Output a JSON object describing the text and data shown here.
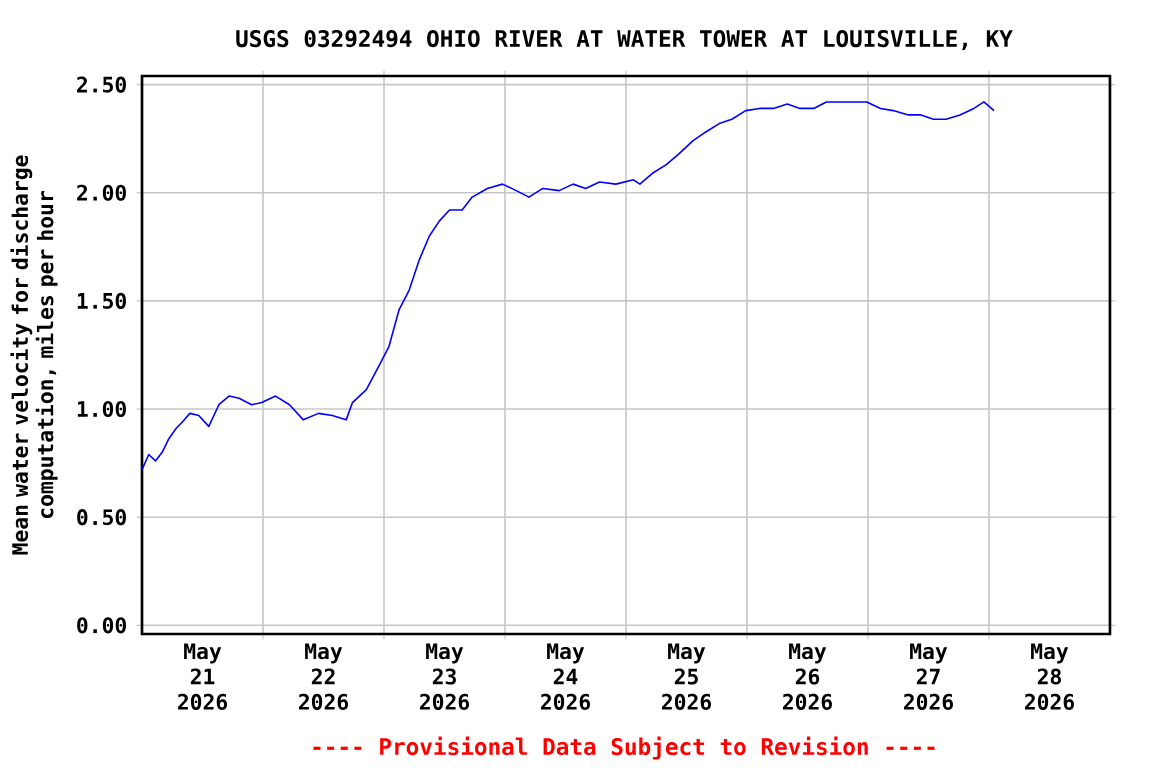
{
  "chart_data": {
    "type": "line",
    "title": "USGS 03292494 OHIO RIVER AT WATER TOWER AT LOUISVILLE, KY",
    "ylabel": "Mean water velocity for discharge computation, miles per hour",
    "annotations": [
      "---- Provisional Data Subject to Revision ----"
    ],
    "color": "#0000ff",
    "x": [
      "2026-05-21T00:00",
      "2026-05-21T01:20",
      "2026-05-21T02:40",
      "2026-05-21T04:00",
      "2026-05-21T05:15",
      "2026-05-21T06:45",
      "2026-05-21T08:00",
      "2026-05-21T09:30",
      "2026-05-21T11:15",
      "2026-05-21T13:15",
      "2026-05-21T15:15",
      "2026-05-21T17:15",
      "2026-05-21T19:15",
      "2026-05-21T21:45",
      "2026-05-21T23:45",
      "2026-05-22T02:30",
      "2026-05-22T05:15",
      "2026-05-22T08:00",
      "2026-05-22T11:00",
      "2026-05-22T13:45",
      "2026-05-22T16:30",
      "2026-05-22T17:45",
      "2026-05-22T20:30",
      "2026-05-22T23:00",
      "2026-05-23T01:00",
      "2026-05-23T03:00",
      "2026-05-23T05:00",
      "2026-05-23T07:00",
      "2026-05-23T09:00",
      "2026-05-23T11:00",
      "2026-05-23T13:00",
      "2026-05-23T15:30",
      "2026-05-23T17:30",
      "2026-05-23T20:30",
      "2026-05-23T23:30",
      "2026-05-24T02:15",
      "2026-05-24T04:45",
      "2026-05-24T07:30",
      "2026-05-24T10:45",
      "2026-05-24T13:30",
      "2026-05-24T16:00",
      "2026-05-24T18:45",
      "2026-05-24T22:00",
      "2026-05-25T01:30",
      "2026-05-25T02:45",
      "2026-05-25T05:15",
      "2026-05-25T08:00",
      "2026-05-25T10:30",
      "2026-05-25T13:15",
      "2026-05-25T15:45",
      "2026-05-25T18:30",
      "2026-05-25T21:00",
      "2026-05-25T23:45",
      "2026-05-26T02:30",
      "2026-05-26T05:15",
      "2026-05-26T08:00",
      "2026-05-26T10:30",
      "2026-05-26T13:15",
      "2026-05-26T15:45",
      "2026-05-26T18:30",
      "2026-05-26T21:00",
      "2026-05-26T23:45",
      "2026-05-27T02:30",
      "2026-05-27T05:00",
      "2026-05-27T08:00",
      "2026-05-27T10:30",
      "2026-05-27T13:00",
      "2026-05-27T15:30",
      "2026-05-27T18:15",
      "2026-05-27T21:00",
      "2026-05-27T23:00",
      "2026-05-28T01:00"
    ],
    "values": [
      0.72,
      0.79,
      0.76,
      0.8,
      0.86,
      0.91,
      0.94,
      0.98,
      0.97,
      0.92,
      1.02,
      1.06,
      1.05,
      1.02,
      1.03,
      1.06,
      1.02,
      0.95,
      0.98,
      0.97,
      0.95,
      1.03,
      1.09,
      1.2,
      1.29,
      1.46,
      1.55,
      1.69,
      1.8,
      1.87,
      1.92,
      1.92,
      1.98,
      2.02,
      2.04,
      2.01,
      1.98,
      2.02,
      2.01,
      2.04,
      2.02,
      2.05,
      2.04,
      2.06,
      2.04,
      2.09,
      2.13,
      2.18,
      2.24,
      2.28,
      2.32,
      2.34,
      2.38,
      2.39,
      2.39,
      2.41,
      2.39,
      2.39,
      2.42,
      2.42,
      2.42,
      2.42,
      2.39,
      2.38,
      2.36,
      2.36,
      2.34,
      2.34,
      2.36,
      2.39,
      2.42,
      2.38
    ],
    "xlim": [
      "2026-05-21T00:00",
      "2026-05-29T00:00"
    ],
    "xticks": [
      {
        "value": "2026-05-22T00:00",
        "label": null
      },
      {
        "value": "2026-05-23T00:00",
        "label": null
      },
      {
        "value": "2026-05-24T00:00",
        "label": null
      },
      {
        "value": "2026-05-25T00:00",
        "label": null
      },
      {
        "value": "2026-05-26T00:00",
        "label": null
      },
      {
        "value": "2026-05-27T00:00",
        "label": null
      },
      {
        "value": "2026-05-28T00:00",
        "label": null
      },
      {
        "value": "2026-05-21T12:00",
        "label": "May 21 2026"
      },
      {
        "value": "2026-05-22T12:00",
        "label": "May 22 2026"
      },
      {
        "value": "2026-05-23T12:00",
        "label": "May 23 2026"
      },
      {
        "value": "2026-05-24T12:00",
        "label": "May 24 2026"
      },
      {
        "value": "2026-05-25T12:00",
        "label": "May 25 2026"
      },
      {
        "value": "2026-05-26T12:00",
        "label": "May 26 2026"
      },
      {
        "value": "2026-05-27T12:00",
        "label": "May 27 2026"
      },
      {
        "value": "2026-05-28T12:00",
        "label": "May 28 2026"
      }
    ],
    "ylim": [
      -0.04,
      2.54
    ],
    "yticks": [
      {
        "value": 0,
        "label": "0.00"
      },
      {
        "value": 0.5,
        "label": "0.50"
      },
      {
        "value": 1,
        "label": "1.00"
      },
      {
        "value": 1.5,
        "label": "1.50"
      },
      {
        "value": 2,
        "label": "2.00"
      },
      {
        "value": 2.5,
        "label": "2.50"
      }
    ],
    "grid": true
  }
}
